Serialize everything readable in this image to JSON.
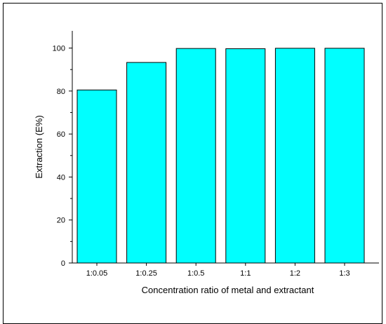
{
  "chart_data": {
    "type": "bar",
    "title": "",
    "xlabel": "Concentration ratio of metal and extractant",
    "ylabel": "Extraction (E%)",
    "categories": [
      "1:0.05",
      "1:0.25",
      "1:0.5",
      "1:1",
      "1:2",
      "1:3"
    ],
    "values": [
      80.5,
      93.3,
      99.8,
      99.7,
      99.9,
      99.9
    ],
    "ylim": [
      0,
      108
    ],
    "yticks": [
      "0",
      "20",
      "40",
      "60",
      "80",
      "100"
    ],
    "grid": false,
    "legend": "none",
    "bar_color": "#00FFFF",
    "edge_color": "#000000"
  }
}
